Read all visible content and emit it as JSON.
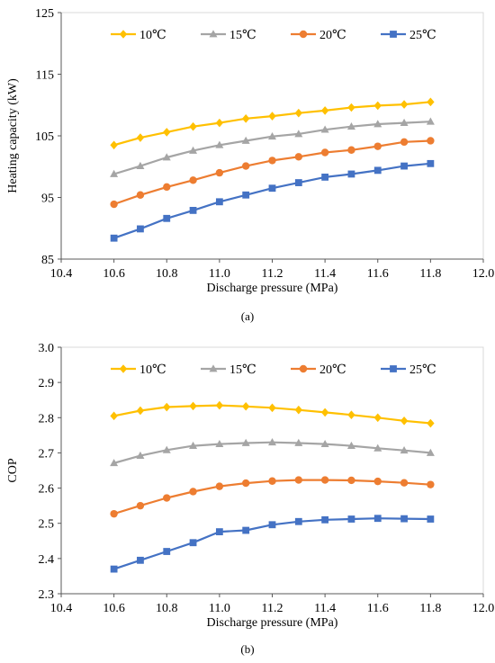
{
  "panels": [
    {
      "label": "(a)",
      "chart_data": {
        "type": "line",
        "title": "",
        "xlabel": "Discharge pressure (MPa)",
        "ylabel": "Heating capacity (kW)",
        "xlim": [
          10.4,
          12.0
        ],
        "ylim": [
          85,
          125
        ],
        "xticks": [
          10.4,
          10.6,
          10.8,
          11.0,
          11.2,
          11.4,
          11.6,
          11.8,
          12.0
        ],
        "xtick_labels": [
          "10.4",
          "10.6",
          "10.8",
          "11.0",
          "11.2",
          "11.4",
          "11.6",
          "11.8",
          "12.0"
        ],
        "yticks": [
          85,
          95,
          105,
          115,
          125
        ],
        "ytick_labels": [
          "85",
          "95",
          "105",
          "115",
          "125"
        ],
        "grid": false,
        "legend_position": "top",
        "x": [
          10.6,
          10.7,
          10.8,
          10.9,
          11.0,
          11.1,
          11.2,
          11.3,
          11.4,
          11.5,
          11.6,
          11.7,
          11.8
        ],
        "series": [
          {
            "name": "10℃",
            "color": "#FFC000",
            "marker": "diamond",
            "values": [
              103.5,
              104.7,
              105.6,
              106.5,
              107.1,
              107.8,
              108.2,
              108.7,
              109.1,
              109.6,
              109.9,
              110.1,
              110.5
            ]
          },
          {
            "name": "15℃",
            "color": "#A5A5A5",
            "marker": "triangle",
            "values": [
              98.8,
              100.1,
              101.5,
              102.6,
              103.5,
              104.2,
              104.9,
              105.3,
              106.0,
              106.5,
              106.9,
              107.1,
              107.3
            ]
          },
          {
            "name": "20℃",
            "color": "#ED7D31",
            "marker": "circle",
            "values": [
              93.9,
              95.4,
              96.7,
              97.8,
              99.0,
              100.1,
              101.0,
              101.6,
              102.3,
              102.7,
              103.3,
              104.0,
              104.2
            ]
          },
          {
            "name": "25℃",
            "color": "#4472C4",
            "marker": "square",
            "values": [
              88.4,
              89.9,
              91.6,
              92.9,
              94.3,
              95.4,
              96.5,
              97.4,
              98.3,
              98.8,
              99.4,
              100.1,
              100.5
            ]
          }
        ]
      }
    },
    {
      "label": "(b)",
      "chart_data": {
        "type": "line",
        "title": "",
        "xlabel": "Discharge pressure (MPa)",
        "ylabel": "COP",
        "xlim": [
          10.4,
          12.0
        ],
        "ylim": [
          2.3,
          3.0
        ],
        "xticks": [
          10.4,
          10.6,
          10.8,
          11.0,
          11.2,
          11.4,
          11.6,
          11.8,
          12.0
        ],
        "xtick_labels": [
          "10.4",
          "10.6",
          "10.8",
          "11.0",
          "11.2",
          "11.4",
          "11.6",
          "11.8",
          "12.0"
        ],
        "yticks": [
          2.3,
          2.4,
          2.5,
          2.6,
          2.7,
          2.8,
          2.9,
          3.0
        ],
        "ytick_labels": [
          "2.3",
          "2.4",
          "2.5",
          "2.6",
          "2.7",
          "2.8",
          "2.9",
          "3.0"
        ],
        "grid": false,
        "legend_position": "top",
        "x": [
          10.6,
          10.7,
          10.8,
          10.9,
          11.0,
          11.1,
          11.2,
          11.3,
          11.4,
          11.5,
          11.6,
          11.7,
          11.8
        ],
        "series": [
          {
            "name": "10℃",
            "color": "#FFC000",
            "marker": "diamond",
            "values": [
              2.805,
              2.82,
              2.83,
              2.833,
              2.835,
              2.832,
              2.828,
              2.822,
              2.815,
              2.808,
              2.8,
              2.791,
              2.784
            ]
          },
          {
            "name": "15℃",
            "color": "#A5A5A5",
            "marker": "triangle",
            "values": [
              2.671,
              2.692,
              2.708,
              2.72,
              2.725,
              2.728,
              2.73,
              2.728,
              2.725,
              2.72,
              2.713,
              2.707,
              2.7
            ]
          },
          {
            "name": "20℃",
            "color": "#ED7D31",
            "marker": "circle",
            "values": [
              2.527,
              2.55,
              2.572,
              2.59,
              2.605,
              2.614,
              2.62,
              2.623,
              2.623,
              2.622,
              2.619,
              2.615,
              2.61
            ]
          },
          {
            "name": "25℃",
            "color": "#4472C4",
            "marker": "square",
            "values": [
              2.37,
              2.395,
              2.42,
              2.445,
              2.476,
              2.48,
              2.496,
              2.505,
              2.51,
              2.512,
              2.514,
              2.513,
              2.512
            ]
          }
        ]
      }
    }
  ]
}
